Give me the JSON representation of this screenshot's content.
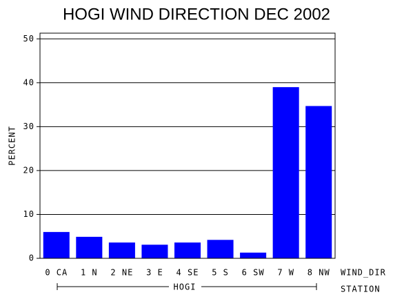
{
  "chart_data": {
    "type": "bar",
    "title": "HOGI WIND DIRECTION DEC 2002",
    "y_label": "PERCENT",
    "x_label": "WIND_DIR",
    "group_label": "HOGI",
    "group_axis_label": "STATION",
    "categories": [
      "0 CA",
      "1 N",
      "2 NE",
      "3 E",
      "4 SE",
      "5 S",
      "6 SW",
      "7 W",
      "8 NW"
    ],
    "values": [
      6.0,
      4.9,
      3.6,
      3.1,
      3.6,
      4.2,
      1.3,
      39.0,
      34.7
    ],
    "color": "#0000ff",
    "ylim": [
      0,
      51.3
    ],
    "yticks": [
      0,
      10,
      20,
      30,
      40,
      50
    ],
    "grid": true
  }
}
